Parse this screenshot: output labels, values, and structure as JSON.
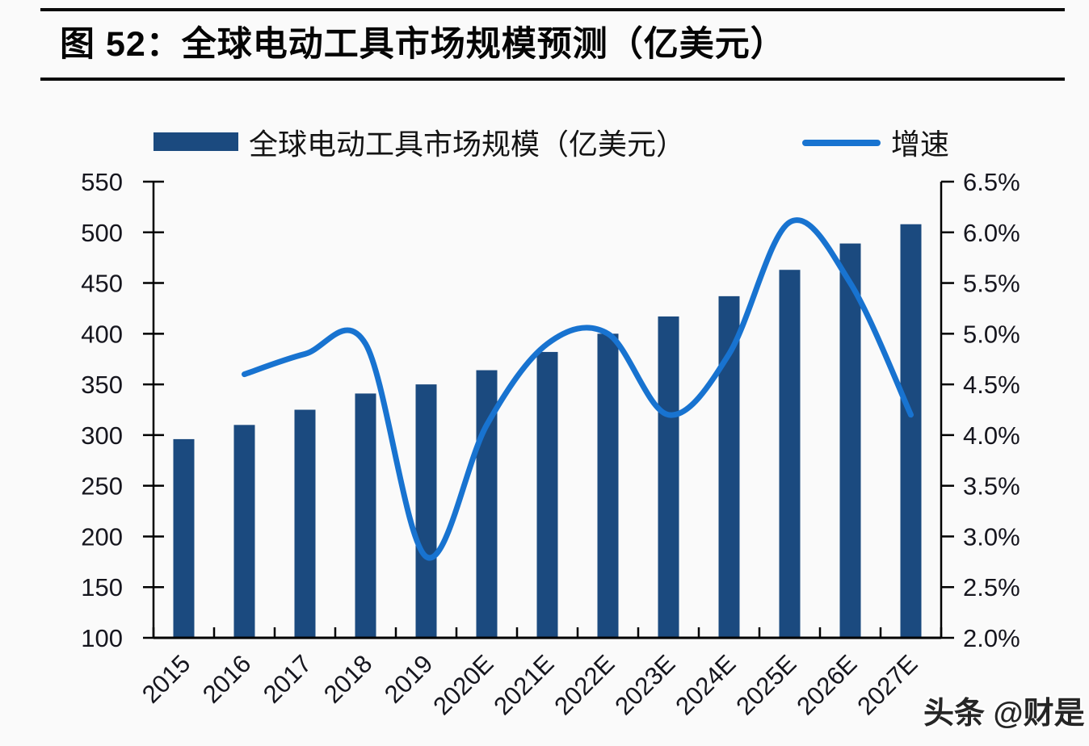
{
  "page": {
    "title": "图 52：全球电动工具市场规模预测（亿美元）",
    "watermark": "头条 @财是"
  },
  "legend": {
    "bar_label": "全球电动工具市场规模（亿美元）",
    "line_label": "增速"
  },
  "colors": {
    "bar": "#1b4a7f",
    "line": "#1873d0",
    "axis": "#000000",
    "tick_text": "#16161e",
    "background": "#fafafa"
  },
  "chart_data": {
    "type": "combo-bar-line",
    "title": "全球电动工具市场规模预测（亿美元）",
    "categories": [
      "2015",
      "2016",
      "2017",
      "2018",
      "2019",
      "2020E",
      "2021E",
      "2022E",
      "2023E",
      "2024E",
      "2025E",
      "2026E",
      "2027E"
    ],
    "series": [
      {
        "name": "全球电动工具市场规模（亿美元）",
        "type": "bar",
        "axis": "left",
        "values": [
          296,
          310,
          325,
          341,
          350,
          364,
          382,
          400,
          417,
          437,
          463,
          489,
          508
        ]
      },
      {
        "name": "增速",
        "type": "line",
        "axis": "right",
        "values": [
          null,
          4.6,
          4.8,
          4.9,
          2.8,
          4.1,
          4.9,
          5.0,
          4.2,
          4.8,
          6.1,
          5.5,
          4.2
        ]
      }
    ],
    "left_axis": {
      "min": 100,
      "max": 550,
      "step": 50,
      "tick_labels": [
        "550",
        "500",
        "450",
        "400",
        "350",
        "300",
        "250",
        "200",
        "150",
        "100"
      ]
    },
    "right_axis": {
      "min": 2.0,
      "max": 6.5,
      "step": 0.5,
      "unit": "%",
      "tick_labels": [
        "6.5%",
        "6.0%",
        "5.5%",
        "5.0%",
        "4.5%",
        "4.0%",
        "3.5%",
        "3.0%",
        "2.5%",
        "2.0%"
      ]
    },
    "grid": false,
    "legend_position": "top"
  }
}
